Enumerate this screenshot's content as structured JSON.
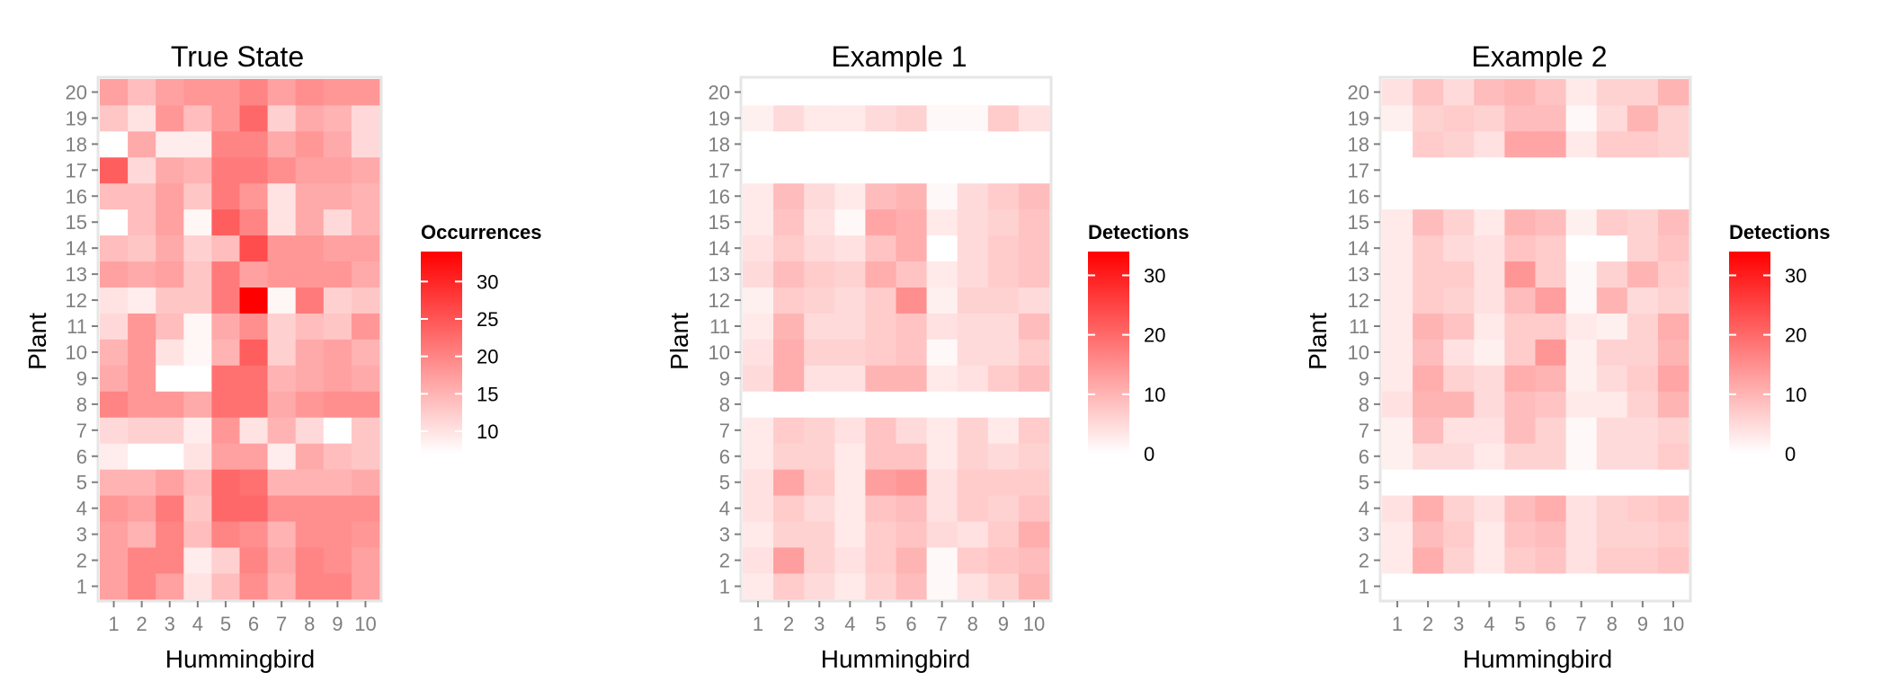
{
  "chart_data": [
    {
      "type": "heatmap",
      "title": "True State",
      "xlabel": "Hummingbird",
      "ylabel": "Plant",
      "x": [
        1,
        2,
        3,
        4,
        5,
        6,
        7,
        8,
        9,
        10
      ],
      "y": [
        1,
        2,
        3,
        4,
        5,
        6,
        7,
        8,
        9,
        10,
        11,
        12,
        13,
        14,
        15,
        16,
        17,
        18,
        19,
        20
      ],
      "legend": {
        "title": "Occurrences",
        "ticks": [
          10,
          15,
          20,
          25,
          30
        ],
        "range": [
          7,
          34
        ],
        "low_color": "#ffffff",
        "high_color": "#ff0000"
      },
      "values": [
        [
          17,
          20,
          17,
          10,
          14,
          19,
          15,
          20,
          20,
          17
        ],
        [
          17,
          20,
          20,
          9,
          12,
          20,
          16,
          20,
          19,
          17
        ],
        [
          17,
          15,
          20,
          14,
          20,
          19,
          15,
          19,
          19,
          18
        ],
        [
          18,
          17,
          21,
          13,
          23,
          23,
          19,
          19,
          19,
          19
        ],
        [
          15,
          15,
          17,
          14,
          23,
          22,
          15,
          15,
          15,
          16
        ],
        [
          9,
          7,
          7,
          10,
          17,
          17,
          9,
          16,
          14,
          13
        ],
        [
          11,
          12,
          12,
          9,
          18,
          10,
          15,
          11,
          7,
          13
        ],
        [
          20,
          18,
          18,
          16,
          22,
          22,
          16,
          18,
          19,
          19
        ],
        [
          16,
          18,
          7,
          7,
          22,
          22,
          15,
          16,
          17,
          16
        ],
        [
          15,
          18,
          10,
          8,
          15,
          24,
          12,
          16,
          17,
          15
        ],
        [
          11,
          18,
          14,
          8,
          16,
          19,
          12,
          14,
          13,
          18
        ],
        [
          10,
          9,
          13,
          13,
          21,
          34,
          8,
          21,
          12,
          13
        ],
        [
          17,
          16,
          17,
          13,
          21,
          17,
          18,
          18,
          18,
          16
        ],
        [
          14,
          13,
          16,
          12,
          14,
          26,
          18,
          18,
          17,
          17
        ],
        [
          7,
          14,
          17,
          8,
          24,
          20,
          10,
          16,
          11,
          15
        ],
        [
          14,
          14,
          17,
          13,
          21,
          18,
          10,
          16,
          16,
          15
        ],
        [
          24,
          11,
          16,
          15,
          21,
          21,
          19,
          17,
          17,
          16
        ],
        [
          7,
          16,
          9,
          9,
          20,
          20,
          16,
          18,
          16,
          11
        ],
        [
          13,
          10,
          18,
          14,
          18,
          23,
          12,
          16,
          15,
          11
        ],
        [
          17,
          14,
          17,
          18,
          18,
          20,
          17,
          19,
          18,
          18
        ]
      ]
    },
    {
      "type": "heatmap",
      "title": "Example 1",
      "xlabel": "Hummingbird",
      "ylabel": "Plant",
      "x": [
        1,
        2,
        3,
        4,
        5,
        6,
        7,
        8,
        9,
        10
      ],
      "y": [
        1,
        2,
        3,
        4,
        5,
        6,
        7,
        8,
        9,
        10,
        11,
        12,
        13,
        14,
        15,
        16,
        17,
        18,
        19,
        20
      ],
      "legend": {
        "title": "Detections",
        "ticks": [
          0,
          10,
          20,
          30
        ],
        "range": [
          0,
          34
        ],
        "low_color": "#ffffff",
        "high_color": "#ff0000"
      },
      "values": [
        [
          3,
          7,
          5,
          3,
          6,
          9,
          1,
          4,
          6,
          10
        ],
        [
          4,
          13,
          6,
          4,
          7,
          10,
          1,
          7,
          8,
          9
        ],
        [
          3,
          6,
          6,
          3,
          7,
          8,
          5,
          4,
          7,
          11
        ],
        [
          4,
          7,
          5,
          3,
          8,
          9,
          4,
          7,
          6,
          8
        ],
        [
          4,
          12,
          7,
          3,
          13,
          14,
          4,
          7,
          7,
          7
        ],
        [
          3,
          6,
          6,
          3,
          8,
          8,
          3,
          6,
          5,
          6
        ],
        [
          3,
          7,
          6,
          4,
          8,
          5,
          3,
          6,
          3,
          7
        ],
        [
          0,
          0,
          0,
          0,
          0,
          0,
          0,
          0,
          0,
          0
        ],
        [
          5,
          11,
          4,
          4,
          10,
          10,
          3,
          4,
          7,
          9
        ],
        [
          4,
          11,
          6,
          6,
          7,
          8,
          1,
          5,
          5,
          7
        ],
        [
          3,
          10,
          5,
          5,
          7,
          8,
          4,
          5,
          5,
          9
        ],
        [
          2,
          7,
          6,
          5,
          7,
          15,
          2,
          6,
          6,
          5
        ],
        [
          5,
          9,
          7,
          6,
          11,
          8,
          3,
          5,
          7,
          8
        ],
        [
          4,
          7,
          5,
          4,
          8,
          11,
          0,
          5,
          7,
          8
        ],
        [
          3,
          8,
          4,
          1,
          12,
          11,
          3,
          5,
          6,
          8
        ],
        [
          3,
          9,
          5,
          3,
          9,
          10,
          1,
          5,
          7,
          9
        ],
        [
          0,
          0,
          0,
          0,
          0,
          0,
          0,
          0,
          0,
          0
        ],
        [
          0,
          0,
          0,
          0,
          0,
          0,
          0,
          0,
          0,
          0
        ],
        [
          2,
          5,
          3,
          3,
          5,
          6,
          1,
          1,
          7,
          4
        ],
        [
          0,
          0,
          0,
          0,
          0,
          0,
          0,
          0,
          0,
          0
        ]
      ]
    },
    {
      "type": "heatmap",
      "title": "Example 2",
      "xlabel": "Hummingbird",
      "ylabel": "Plant",
      "x": [
        1,
        2,
        3,
        4,
        5,
        6,
        7,
        8,
        9,
        10
      ],
      "y": [
        1,
        2,
        3,
        4,
        5,
        6,
        7,
        8,
        9,
        10,
        11,
        12,
        13,
        14,
        15,
        16,
        17,
        18,
        19,
        20
      ],
      "legend": {
        "title": "Detections",
        "ticks": [
          0,
          10,
          20,
          30
        ],
        "range": [
          0,
          34
        ],
        "low_color": "#ffffff",
        "high_color": "#ff0000"
      },
      "values": [
        [
          0,
          0,
          0,
          0,
          0,
          0,
          0,
          0,
          0,
          0
        ],
        [
          3,
          11,
          6,
          3,
          7,
          8,
          4,
          7,
          7,
          8
        ],
        [
          3,
          9,
          7,
          3,
          8,
          9,
          4,
          6,
          6,
          7
        ],
        [
          4,
          11,
          6,
          4,
          9,
          11,
          4,
          6,
          7,
          8
        ],
        [
          0,
          0,
          0,
          0,
          0,
          0,
          0,
          0,
          0,
          0
        ],
        [
          2,
          5,
          5,
          3,
          6,
          6,
          1,
          5,
          5,
          7
        ],
        [
          2,
          9,
          4,
          4,
          9,
          6,
          1,
          5,
          5,
          6
        ],
        [
          4,
          10,
          10,
          5,
          9,
          8,
          3,
          3,
          6,
          10
        ],
        [
          3,
          11,
          6,
          5,
          11,
          10,
          2,
          5,
          7,
          12
        ],
        [
          3,
          9,
          4,
          2,
          7,
          14,
          2,
          6,
          6,
          10
        ],
        [
          3,
          10,
          8,
          3,
          7,
          7,
          3,
          2,
          6,
          11
        ],
        [
          3,
          7,
          6,
          4,
          9,
          13,
          1,
          10,
          5,
          6
        ],
        [
          3,
          7,
          7,
          4,
          14,
          7,
          1,
          6,
          10,
          7
        ],
        [
          3,
          7,
          5,
          4,
          8,
          7,
          0,
          0,
          6,
          8
        ],
        [
          3,
          9,
          6,
          3,
          10,
          9,
          2,
          7,
          6,
          9
        ],
        [
          0,
          0,
          0,
          0,
          0,
          0,
          0,
          0,
          0,
          0
        ],
        [
          0,
          0,
          0,
          0,
          0,
          0,
          0,
          0,
          0,
          0
        ],
        [
          0,
          7,
          6,
          4,
          12,
          12,
          3,
          7,
          7,
          6
        ],
        [
          2,
          6,
          7,
          6,
          9,
          9,
          1,
          5,
          10,
          6
        ],
        [
          4,
          8,
          5,
          9,
          10,
          8,
          3,
          6,
          6,
          10
        ]
      ]
    }
  ]
}
